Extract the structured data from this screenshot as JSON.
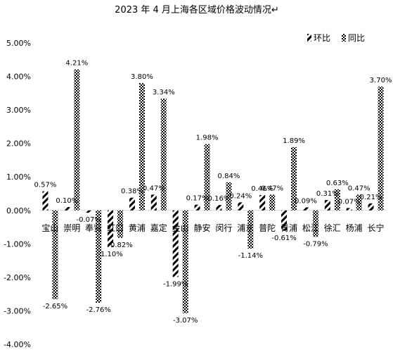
{
  "chart_data": {
    "type": "bar",
    "title": "2023 年 4 月上海各区域价格波动情况↵",
    "categories": [
      "宝山",
      "崇明",
      "奉贤",
      "虹口",
      "黄浦",
      "嘉定",
      "金山",
      "静安",
      "闵行",
      "浦东",
      "普陀",
      "青浦",
      "松江",
      "徐汇",
      "杨浦",
      "长宁"
    ],
    "series": [
      {
        "name": "环比",
        "values": [
          0.57,
          0.1,
          -0.07,
          -1.1,
          0.38,
          0.47,
          -1.99,
          0.17,
          0.16,
          0.24,
          0.46,
          -0.61,
          0.09,
          0.31,
          0.07,
          0.21
        ],
        "labels": [
          "0.57%",
          "0.10%",
          "-0.07%",
          "-1.10%",
          "0.38%",
          "0.47%",
          "-1.99%",
          "0.17%",
          "0.16%",
          "0.24%",
          "0.46%",
          "-0.61%",
          "0.09%",
          "0.31%",
          "0.07%",
          "0.21%"
        ]
      },
      {
        "name": "同比",
        "values": [
          -2.65,
          4.21,
          -2.76,
          -0.82,
          3.8,
          3.34,
          -3.07,
          1.98,
          0.84,
          -1.14,
          0.47,
          1.89,
          -0.79,
          0.63,
          0.47,
          3.7
        ],
        "labels": [
          "-2.65%",
          "4.21%",
          "-2.76%",
          "-0.82%",
          "3.80%",
          "3.34%",
          "-3.07%",
          "1.98%",
          "0.84%",
          "-1.14%",
          "0.47%",
          "1.89%",
          "-0.79%",
          "0.63%",
          "0.47%",
          "3.70%"
        ]
      }
    ],
    "yticks": [
      "5.00%",
      "4.00%",
      "3.00%",
      "2.00%",
      "1.00%",
      "0.00%",
      "-1.00%",
      "-2.00%",
      "-3.00%",
      "-4.00%"
    ],
    "ylim": [
      -4,
      5
    ],
    "grid": false,
    "legend_position": "top-right",
    "pattern_hb": "diagonal-stripes",
    "pattern_tb": "checkered",
    "colors": {
      "bar": "#000000",
      "background": "#ffffff",
      "axis": "#d9d9d9",
      "text": "#000000"
    }
  }
}
